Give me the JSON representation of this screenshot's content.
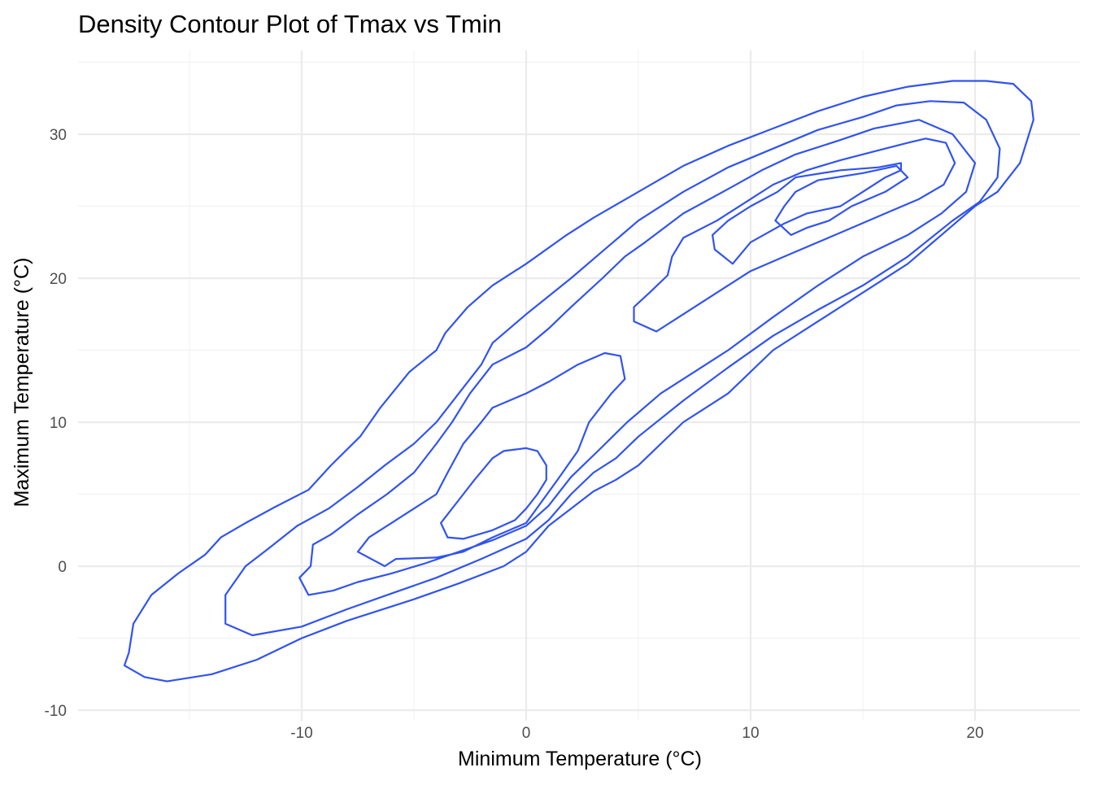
{
  "chart_data": {
    "type": "contour",
    "title": "Density Contour Plot of Tmax vs Tmin",
    "xlabel": "Minimum Temperature (°C)",
    "ylabel": "Maximum Temperature (°C)",
    "xlim": [
      -19.5,
      24.5
    ],
    "ylim": [
      -10,
      35
    ],
    "x_ticks": [
      -10,
      0,
      10,
      20
    ],
    "y_ticks": [
      -10,
      0,
      10,
      20,
      30
    ],
    "x_tick_labels": [
      "-10",
      "0",
      "10",
      "20"
    ],
    "y_tick_labels": [
      "-10",
      "0",
      "10",
      "20",
      "30"
    ],
    "grid": true,
    "line_color": "#3153f0",
    "contours": [
      {
        "points": [
          [
            -17.9,
            -6.9
          ],
          [
            -17.7,
            -6
          ],
          [
            -17.5,
            -4
          ],
          [
            -16.7,
            -2
          ],
          [
            -15.5,
            -0.5
          ],
          [
            -14.3,
            0.8
          ],
          [
            -13.6,
            2
          ],
          [
            -12.5,
            3
          ],
          [
            -11.2,
            4.1
          ],
          [
            -9.7,
            5.3
          ],
          [
            -8.7,
            7
          ],
          [
            -7.4,
            9
          ],
          [
            -6.5,
            11
          ],
          [
            -5.2,
            13.5
          ],
          [
            -4,
            15
          ],
          [
            -3.6,
            16.2
          ],
          [
            -2.6,
            18
          ],
          [
            -1.5,
            19.5
          ],
          [
            0,
            21
          ],
          [
            1.8,
            23
          ],
          [
            3,
            24.2
          ],
          [
            5,
            26
          ],
          [
            7,
            27.8
          ],
          [
            9,
            29.2
          ],
          [
            11,
            30.4
          ],
          [
            13,
            31.6
          ],
          [
            15,
            32.6
          ],
          [
            17,
            33.3
          ],
          [
            19,
            33.7
          ],
          [
            20.5,
            33.7
          ],
          [
            21.7,
            33.5
          ],
          [
            22.5,
            32.3
          ],
          [
            22.6,
            31
          ],
          [
            22,
            28
          ],
          [
            21,
            26
          ],
          [
            20,
            25
          ],
          [
            18.5,
            23
          ],
          [
            17,
            21
          ],
          [
            15,
            19
          ],
          [
            13,
            17
          ],
          [
            11,
            15
          ],
          [
            9,
            12
          ],
          [
            7,
            10
          ],
          [
            5,
            7
          ],
          [
            4,
            6
          ],
          [
            3,
            5.2
          ],
          [
            2,
            4
          ],
          [
            1,
            2.8
          ],
          [
            0,
            1
          ],
          [
            -1,
            0
          ],
          [
            -3,
            -1.2
          ],
          [
            -5,
            -2.3
          ],
          [
            -8,
            -3.8
          ],
          [
            -10,
            -5
          ],
          [
            -12,
            -6.5
          ],
          [
            -14,
            -7.5
          ],
          [
            -16,
            -8
          ],
          [
            -17,
            -7.7
          ],
          [
            -17.9,
            -6.9
          ]
        ]
      },
      {
        "points": [
          [
            -13.4,
            -4
          ],
          [
            -13.4,
            -2
          ],
          [
            -12.5,
            0
          ],
          [
            -11.5,
            1.2
          ],
          [
            -10.2,
            2.8
          ],
          [
            -8.8,
            4
          ],
          [
            -7.5,
            5.5
          ],
          [
            -6.3,
            7
          ],
          [
            -5,
            8.5
          ],
          [
            -4,
            10
          ],
          [
            -3,
            12
          ],
          [
            -2,
            14
          ],
          [
            -1.5,
            15.5
          ],
          [
            0,
            17.5
          ],
          [
            2,
            20
          ],
          [
            3.5,
            22
          ],
          [
            5,
            24
          ],
          [
            7,
            26
          ],
          [
            9,
            27.7
          ],
          [
            11,
            29
          ],
          [
            13,
            30.3
          ],
          [
            15,
            31.2
          ],
          [
            16.5,
            32
          ],
          [
            18,
            32.3
          ],
          [
            19.5,
            32.2
          ],
          [
            20.5,
            31
          ],
          [
            21.1,
            29
          ],
          [
            21,
            27
          ],
          [
            20.2,
            25.3
          ],
          [
            19,
            24
          ],
          [
            17,
            21.5
          ],
          [
            15,
            19.5
          ],
          [
            13,
            17.8
          ],
          [
            11,
            16
          ],
          [
            9,
            13.8
          ],
          [
            7,
            11.5
          ],
          [
            5,
            9
          ],
          [
            4,
            7.5
          ],
          [
            3,
            6.5
          ],
          [
            2,
            5
          ],
          [
            1,
            3.2
          ],
          [
            0,
            1.9
          ],
          [
            -2,
            0.5
          ],
          [
            -4,
            -0.8
          ],
          [
            -6,
            -1.9
          ],
          [
            -8,
            -3
          ],
          [
            -10,
            -4.2
          ],
          [
            -12.2,
            -4.8
          ],
          [
            -13.4,
            -4
          ]
        ]
      },
      {
        "points": [
          [
            -10.1,
            -0.8
          ],
          [
            -9.6,
            0
          ],
          [
            -9.5,
            1.5
          ],
          [
            -8.7,
            2.2
          ],
          [
            -7.5,
            3.6
          ],
          [
            -6.2,
            5
          ],
          [
            -5,
            6.5
          ],
          [
            -4,
            8.5
          ],
          [
            -3.3,
            10
          ],
          [
            -2.5,
            12
          ],
          [
            -1.5,
            14
          ],
          [
            0,
            15.2
          ],
          [
            1,
            16.5
          ],
          [
            2,
            18
          ],
          [
            3.4,
            20
          ],
          [
            4.4,
            21.5
          ],
          [
            5.3,
            22.5
          ],
          [
            7,
            24.5
          ],
          [
            9,
            26.2
          ],
          [
            10.5,
            27.5
          ],
          [
            12,
            28.6
          ],
          [
            14,
            29.6
          ],
          [
            15.5,
            30.4
          ],
          [
            17.5,
            31
          ],
          [
            19,
            30
          ],
          [
            20,
            28
          ],
          [
            19.6,
            26
          ],
          [
            18.5,
            24.5
          ],
          [
            17,
            23
          ],
          [
            15,
            21.5
          ],
          [
            13,
            19.5
          ],
          [
            11,
            17.3
          ],
          [
            9,
            15
          ],
          [
            7.5,
            13.5
          ],
          [
            6,
            12
          ],
          [
            4.5,
            10
          ],
          [
            3.2,
            8
          ],
          [
            2,
            6.2
          ],
          [
            1,
            4.2
          ],
          [
            0,
            2.8
          ],
          [
            -1.5,
            1.8
          ],
          [
            -3,
            1
          ],
          [
            -4.5,
            0.2
          ],
          [
            -6,
            -0.5
          ],
          [
            -7.5,
            -1.1
          ],
          [
            -8.6,
            -1.7
          ],
          [
            -9.7,
            -2
          ],
          [
            -10.1,
            -0.8
          ]
        ]
      },
      {
        "points": [
          [
            -7.5,
            1
          ],
          [
            -7,
            2
          ],
          [
            -6,
            3
          ],
          [
            -5,
            4
          ],
          [
            -4,
            5
          ],
          [
            -3.5,
            6.5
          ],
          [
            -2.8,
            8.5
          ],
          [
            -2,
            10
          ],
          [
            -1.5,
            11
          ],
          [
            0,
            12
          ],
          [
            1,
            12.8
          ],
          [
            2.3,
            14
          ],
          [
            3.5,
            14.8
          ],
          [
            4.2,
            14.6
          ],
          [
            4.4,
            13
          ],
          [
            3.8,
            12
          ],
          [
            2.8,
            10
          ],
          [
            2.3,
            8
          ],
          [
            1.4,
            6
          ],
          [
            0,
            3
          ],
          [
            -1.5,
            2
          ],
          [
            -2.8,
            1
          ],
          [
            -4,
            0.6
          ],
          [
            -5.8,
            0.5
          ],
          [
            -6.3,
            0
          ],
          [
            -7.5,
            1
          ]
        ]
      },
      {
        "points": [
          [
            4.8,
            17
          ],
          [
            4.8,
            18
          ],
          [
            5.5,
            19
          ],
          [
            6.3,
            20.2
          ],
          [
            6.5,
            21.5
          ],
          [
            7,
            22.8
          ],
          [
            8.5,
            24
          ],
          [
            10,
            25.5
          ],
          [
            11,
            26.5
          ],
          [
            12.5,
            27.5
          ],
          [
            14,
            28.2
          ],
          [
            15.5,
            28.8
          ],
          [
            17,
            29.4
          ],
          [
            17.8,
            29.7
          ],
          [
            18.7,
            29.4
          ],
          [
            19.1,
            28
          ],
          [
            18.6,
            26.5
          ],
          [
            17.5,
            25.5
          ],
          [
            16,
            24.5
          ],
          [
            14.5,
            23.5
          ],
          [
            13,
            22.5
          ],
          [
            11.5,
            21.5
          ],
          [
            10,
            20.5
          ],
          [
            8.5,
            19
          ],
          [
            7,
            17.5
          ],
          [
            5.8,
            16.3
          ],
          [
            4.8,
            17
          ]
        ]
      },
      {
        "points": [
          [
            -3.8,
            3
          ],
          [
            -3.5,
            2
          ],
          [
            -2.8,
            1.9
          ],
          [
            -1.5,
            2.5
          ],
          [
            -0.5,
            3.2
          ],
          [
            0,
            4
          ],
          [
            0.5,
            5
          ],
          [
            0.9,
            6
          ],
          [
            0.9,
            7
          ],
          [
            0.5,
            8
          ],
          [
            0,
            8.2
          ],
          [
            -1,
            8
          ],
          [
            -1.5,
            7.5
          ],
          [
            -2.3,
            6
          ],
          [
            -2.8,
            5
          ],
          [
            -3.8,
            3
          ]
        ]
      },
      {
        "points": [
          [
            8.4,
            22
          ],
          [
            8.3,
            23
          ],
          [
            9,
            24
          ],
          [
            10,
            25
          ],
          [
            11.2,
            26
          ],
          [
            12,
            27
          ],
          [
            14,
            27.5
          ],
          [
            15.7,
            27.7
          ],
          [
            16.7,
            28
          ],
          [
            16.7,
            27.5
          ],
          [
            16,
            27
          ],
          [
            15,
            26
          ],
          [
            14,
            25
          ],
          [
            12.5,
            24.5
          ],
          [
            11.5,
            23.8
          ],
          [
            10,
            22.5
          ],
          [
            9.2,
            21
          ],
          [
            8.4,
            22
          ]
        ]
      },
      {
        "points": [
          [
            11.1,
            24
          ],
          [
            11.5,
            25
          ],
          [
            12,
            26
          ],
          [
            13,
            26.8
          ],
          [
            15,
            27.3
          ],
          [
            16.5,
            27.8
          ],
          [
            17,
            27
          ],
          [
            16,
            26
          ],
          [
            14.5,
            25
          ],
          [
            13.5,
            24
          ],
          [
            12.5,
            23.5
          ],
          [
            11.8,
            23
          ],
          [
            11.1,
            24
          ]
        ]
      }
    ]
  }
}
